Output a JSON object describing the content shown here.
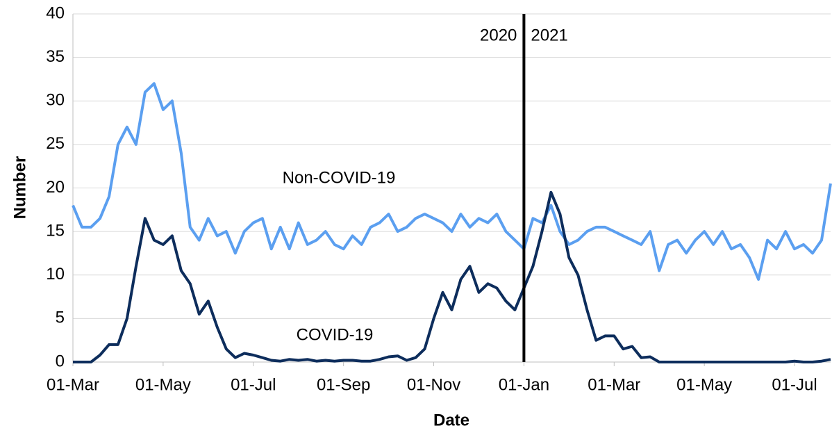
{
  "chart_data": {
    "type": "line",
    "xlabel": "Date",
    "ylabel": "Number",
    "categories": [
      "01-Mar",
      null,
      null,
      null,
      null,
      null,
      null,
      null,
      null,
      null,
      "01-May",
      null,
      null,
      null,
      null,
      null,
      null,
      null,
      null,
      null,
      "01-Jul",
      null,
      null,
      null,
      null,
      null,
      null,
      null,
      null,
      null,
      "01-Sep",
      null,
      null,
      null,
      null,
      null,
      null,
      null,
      null,
      null,
      "01-Nov",
      null,
      null,
      null,
      null,
      null,
      null,
      null,
      null,
      null,
      "01-Jan",
      null,
      null,
      null,
      null,
      null,
      null,
      null,
      null,
      null,
      "01-Mar",
      null,
      null,
      null,
      null,
      null,
      null,
      null,
      null,
      null,
      "01-May",
      null,
      null,
      null,
      null,
      null,
      null,
      null,
      null,
      null,
      "01-Jul",
      null,
      null,
      null,
      null
    ],
    "series": [
      {
        "name": "Non-COVID-19",
        "color": "#5b9ff0",
        "values": [
          18,
          15.5,
          15.5,
          16.5,
          19,
          25,
          27,
          25,
          31,
          32,
          29,
          30,
          24,
          15.5,
          14,
          16.5,
          14.5,
          15,
          12.5,
          15,
          16,
          16.5,
          13,
          15.5,
          13,
          16,
          13.5,
          14,
          15,
          13.5,
          13,
          14.5,
          13.5,
          15.5,
          16,
          17,
          15,
          15.5,
          16.5,
          17,
          16.5,
          16,
          15,
          17,
          15.5,
          16.5,
          16,
          17,
          15,
          14,
          13,
          16.5,
          16,
          18,
          15,
          13.5,
          14,
          15,
          15.5,
          15.5,
          15,
          14.5,
          14,
          13.5,
          15,
          10.5,
          13.5,
          14,
          12.5,
          14,
          15,
          13.5,
          15,
          13,
          13.5,
          12,
          9.5,
          14,
          13,
          15,
          13,
          13.5,
          12.5,
          14,
          20.5
        ]
      },
      {
        "name": "COVID-19",
        "color": "#0d2d5c",
        "values": [
          0,
          0,
          0,
          0.8,
          2,
          2,
          5,
          11,
          16.5,
          14,
          13.5,
          14.5,
          10.5,
          9,
          5.5,
          7,
          4,
          1.5,
          0.5,
          1,
          0.8,
          0.5,
          0.2,
          0.1,
          0.3,
          0.2,
          0.3,
          0.1,
          0.2,
          0.1,
          0.2,
          0.2,
          0.1,
          0.1,
          0.3,
          0.6,
          0.7,
          0.2,
          0.5,
          1.5,
          5,
          8,
          6,
          9.5,
          11,
          8,
          9,
          8.5,
          7,
          6,
          8.5,
          11,
          15,
          19.5,
          17,
          12,
          10,
          6,
          2.5,
          3,
          3,
          1.5,
          1.8,
          0.5,
          0.6,
          0,
          0,
          0,
          0,
          0,
          0,
          0,
          0,
          0,
          0,
          0,
          0,
          0,
          0,
          0,
          0.1,
          0,
          0,
          0.1,
          0.3
        ]
      }
    ],
    "annotations": [
      "2020",
      "2021"
    ],
    "ylim": [
      0,
      40
    ],
    "yticks": [
      0,
      5,
      10,
      15,
      20,
      25,
      30,
      35,
      40
    ],
    "grid": true
  }
}
